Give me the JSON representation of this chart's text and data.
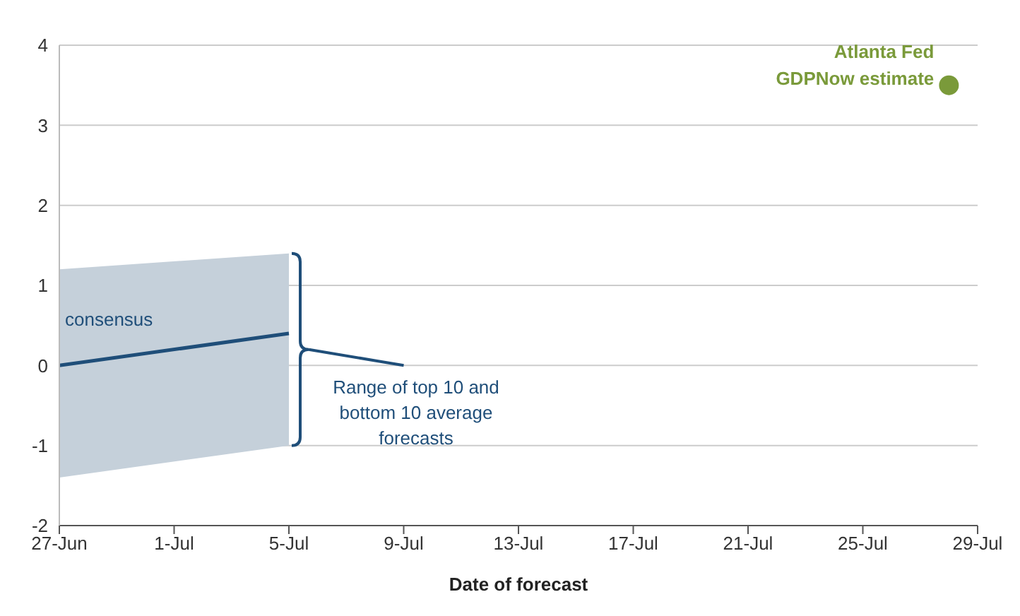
{
  "chart_data": {
    "type": "line",
    "xlabel": "Date of forecast",
    "xlim": [
      "--06-27",
      "--07-29"
    ],
    "xticks": [
      {
        "value": "--06-27",
        "label": "27-Jun"
      },
      {
        "value": "--07-01",
        "label": "1-Jul"
      },
      {
        "value": "--07-05",
        "label": "5-Jul"
      },
      {
        "value": "--07-09",
        "label": "9-Jul"
      },
      {
        "value": "--07-13",
        "label": "13-Jul"
      },
      {
        "value": "--07-17",
        "label": "17-Jul"
      },
      {
        "value": "--07-21",
        "label": "21-Jul"
      },
      {
        "value": "--07-25",
        "label": "25-Jul"
      },
      {
        "value": "--07-29",
        "label": "29-Jul"
      }
    ],
    "ylim": [
      -2,
      4
    ],
    "yticks": [
      -2,
      -1,
      0,
      1,
      2,
      3,
      4
    ],
    "grid": "y",
    "series": [
      {
        "name": "consensus",
        "color": "#1f4e79",
        "x": [
          "--06-27",
          "--07-05"
        ],
        "values": [
          0,
          0.4
        ],
        "lower": [
          -1.4,
          -1.0
        ],
        "upper": [
          1.2,
          1.4
        ]
      },
      {
        "name": "Atlanta Fed GDPNow estimate",
        "type": "scatter",
        "color": "#7a9a3a",
        "x": [
          "--07-28"
        ],
        "values": [
          3.5
        ]
      }
    ],
    "annotations": [
      "Range of top 10 and bottom 10 average forecasts"
    ]
  }
}
